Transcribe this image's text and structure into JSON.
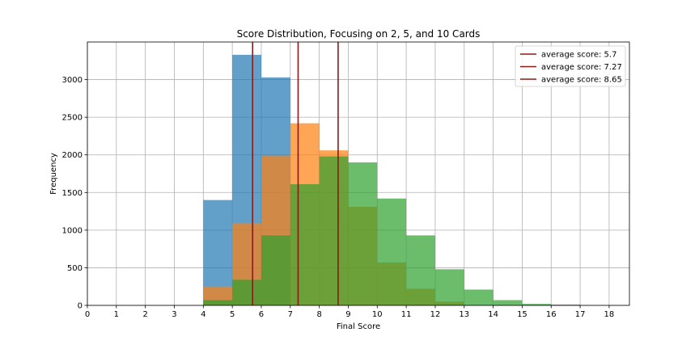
{
  "chart_data": {
    "type": "histogram",
    "title": "Score Distribution, Focusing on 2, 5, and 10 Cards",
    "xlabel": "Final Score",
    "ylabel": "Frequency",
    "xlim": [
      0,
      18.7
    ],
    "ylim": [
      0,
      3500
    ],
    "x_ticks": [
      0,
      1,
      2,
      3,
      4,
      5,
      6,
      7,
      8,
      9,
      10,
      11,
      12,
      13,
      14,
      15,
      16,
      17,
      18
    ],
    "y_ticks": [
      0,
      500,
      1000,
      1500,
      2000,
      2500,
      3000
    ],
    "grid": true,
    "legend_position": "top-right",
    "series": [
      {
        "color": "#1f77b4",
        "alpha": 0.7,
        "bins": [
          [
            4,
            5
          ],
          [
            5,
            6
          ],
          [
            6,
            7
          ],
          [
            7,
            8
          ],
          [
            8,
            9
          ],
          [
            9,
            10
          ]
        ],
        "values": [
          1400,
          3330,
          3030,
          0,
          0,
          0
        ]
      },
      {
        "color": "#ff7f0e",
        "alpha": 0.7,
        "bins": [
          [
            4,
            5
          ],
          [
            5,
            6
          ],
          [
            6,
            7
          ],
          [
            7,
            8
          ],
          [
            8,
            9
          ],
          [
            9,
            10
          ],
          [
            10,
            11
          ],
          [
            11,
            12
          ],
          [
            12,
            13
          ]
        ],
        "values": [
          250,
          1090,
          1990,
          2420,
          2060,
          1310,
          570,
          220,
          50
        ]
      },
      {
        "color": "#2ca02c",
        "alpha": 0.7,
        "bins": [
          [
            4,
            5
          ],
          [
            5,
            6
          ],
          [
            6,
            7
          ],
          [
            7,
            8
          ],
          [
            8,
            9
          ],
          [
            9,
            10
          ],
          [
            10,
            11
          ],
          [
            11,
            12
          ],
          [
            12,
            13
          ],
          [
            13,
            14
          ],
          [
            14,
            15
          ],
          [
            15,
            16
          ],
          [
            16,
            17
          ]
        ],
        "values": [
          70,
          340,
          930,
          1610,
          1980,
          1900,
          1420,
          930,
          480,
          210,
          70,
          20,
          10
        ]
      }
    ],
    "average_lines": [
      {
        "label": "average score: 5.7",
        "x": 5.7,
        "color": "#8b1a1a"
      },
      {
        "label": "average score: 7.27",
        "x": 7.27,
        "color": "#8b1a1a"
      },
      {
        "label": "average score: 8.65",
        "x": 8.65,
        "color": "#8b1a1a"
      }
    ]
  }
}
